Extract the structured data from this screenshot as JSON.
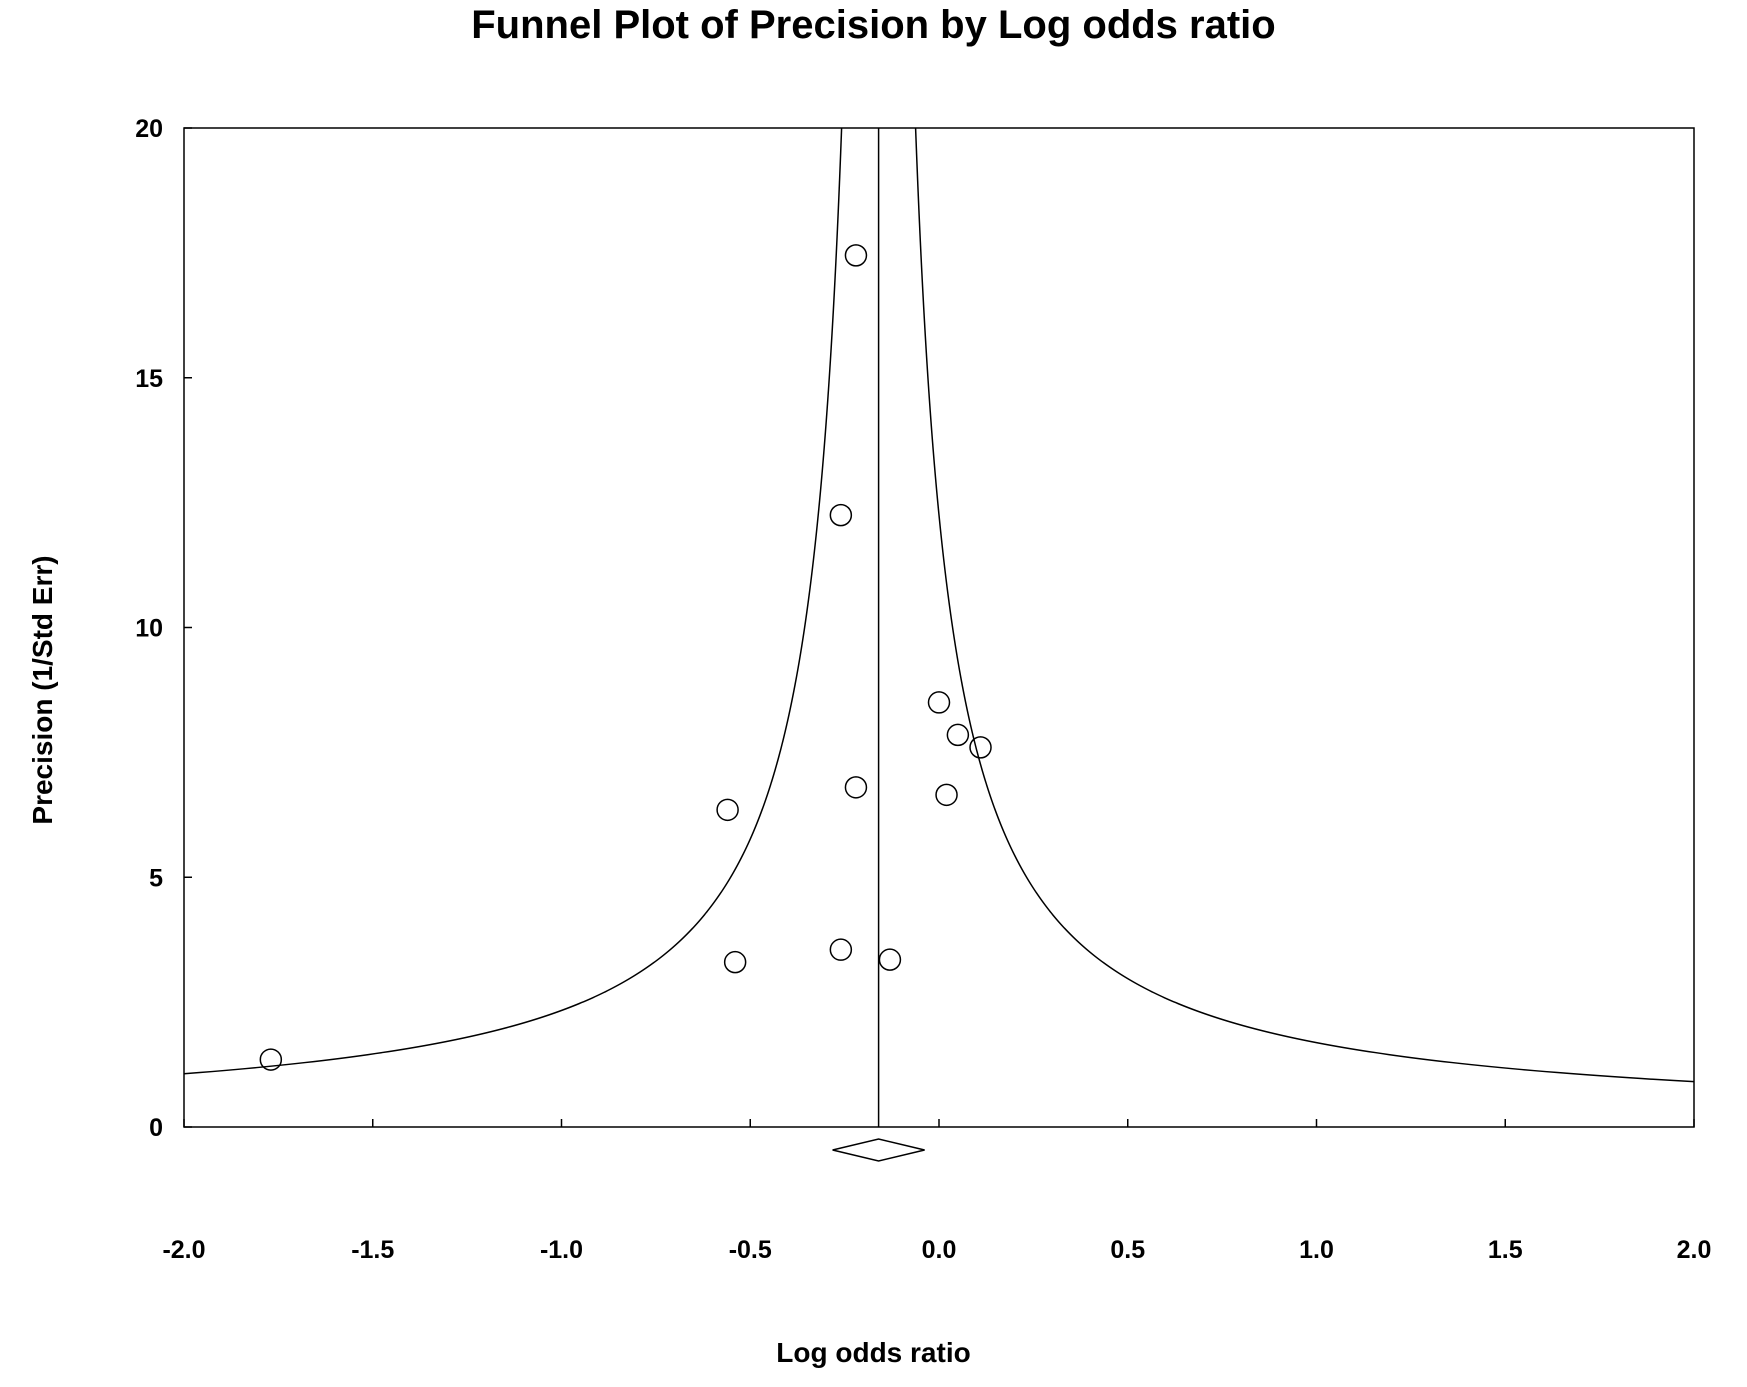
{
  "chart_data": {
    "type": "scatter",
    "title": "Funnel Plot of Precision by Log odds ratio",
    "xlabel": "Log odds ratio",
    "ylabel": "Precision (1/Std Err)",
    "xlim": [
      -2.0,
      2.0
    ],
    "ylim": [
      0,
      20
    ],
    "x_ticks": [
      "-2.0",
      "-1.5",
      "-1.0",
      "-0.5",
      "0.0",
      "0.5",
      "1.0",
      "1.5",
      "2.0"
    ],
    "y_ticks": [
      "0",
      "5",
      "10",
      "15",
      "20"
    ],
    "grid": false,
    "pooled_estimate": -0.16,
    "funnel_z": 1.96,
    "points": [
      {
        "x": -1.77,
        "y": 1.35
      },
      {
        "x": -0.56,
        "y": 6.35
      },
      {
        "x": -0.54,
        "y": 3.3
      },
      {
        "x": -0.26,
        "y": 3.55
      },
      {
        "x": -0.26,
        "y": 12.25
      },
      {
        "x": -0.22,
        "y": 17.45
      },
      {
        "x": -0.22,
        "y": 6.8
      },
      {
        "x": -0.13,
        "y": 3.35
      },
      {
        "x": 0.0,
        "y": 8.5
      },
      {
        "x": 0.05,
        "y": 7.85
      },
      {
        "x": 0.11,
        "y": 7.6
      },
      {
        "x": 0.02,
        "y": 6.65
      }
    ]
  },
  "colors": {
    "line": "#000000",
    "background": "#ffffff"
  }
}
